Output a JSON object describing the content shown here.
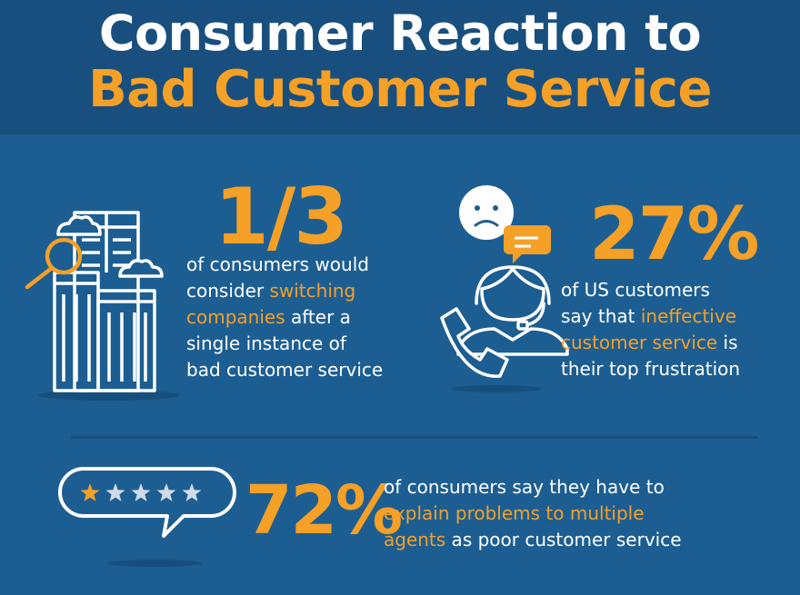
{
  "header": {
    "title_line1": "Consumer Reaction to",
    "title_line2": "Bad Customer Service"
  },
  "stats": [
    {
      "value": "1/3",
      "text_parts": [
        "of consumers would",
        "consider ",
        "switching",
        "companies",
        " after a",
        "single instance of",
        "bad customer service"
      ]
    },
    {
      "value": "27%",
      "text_parts": [
        "of US customers",
        "say that ",
        "ineffective",
        "customer service",
        " is",
        "their top frustration"
      ]
    },
    {
      "value": "72%",
      "text_parts": [
        "of consumers say they have to",
        "explain problems to multiple",
        "agents",
        " as poor customer service"
      ]
    }
  ],
  "icons": {
    "building": "buildings-magnifier-icon",
    "agent": "frowning-customer-with-headset-icon",
    "rating": "speech-bubble-one-star-rating-icon"
  },
  "rating": {
    "filled": 1,
    "total": 5
  },
  "colors": {
    "background": "#1d5e92",
    "header": "#184f7e",
    "accent": "#f5a027",
    "text": "#ffffff"
  }
}
